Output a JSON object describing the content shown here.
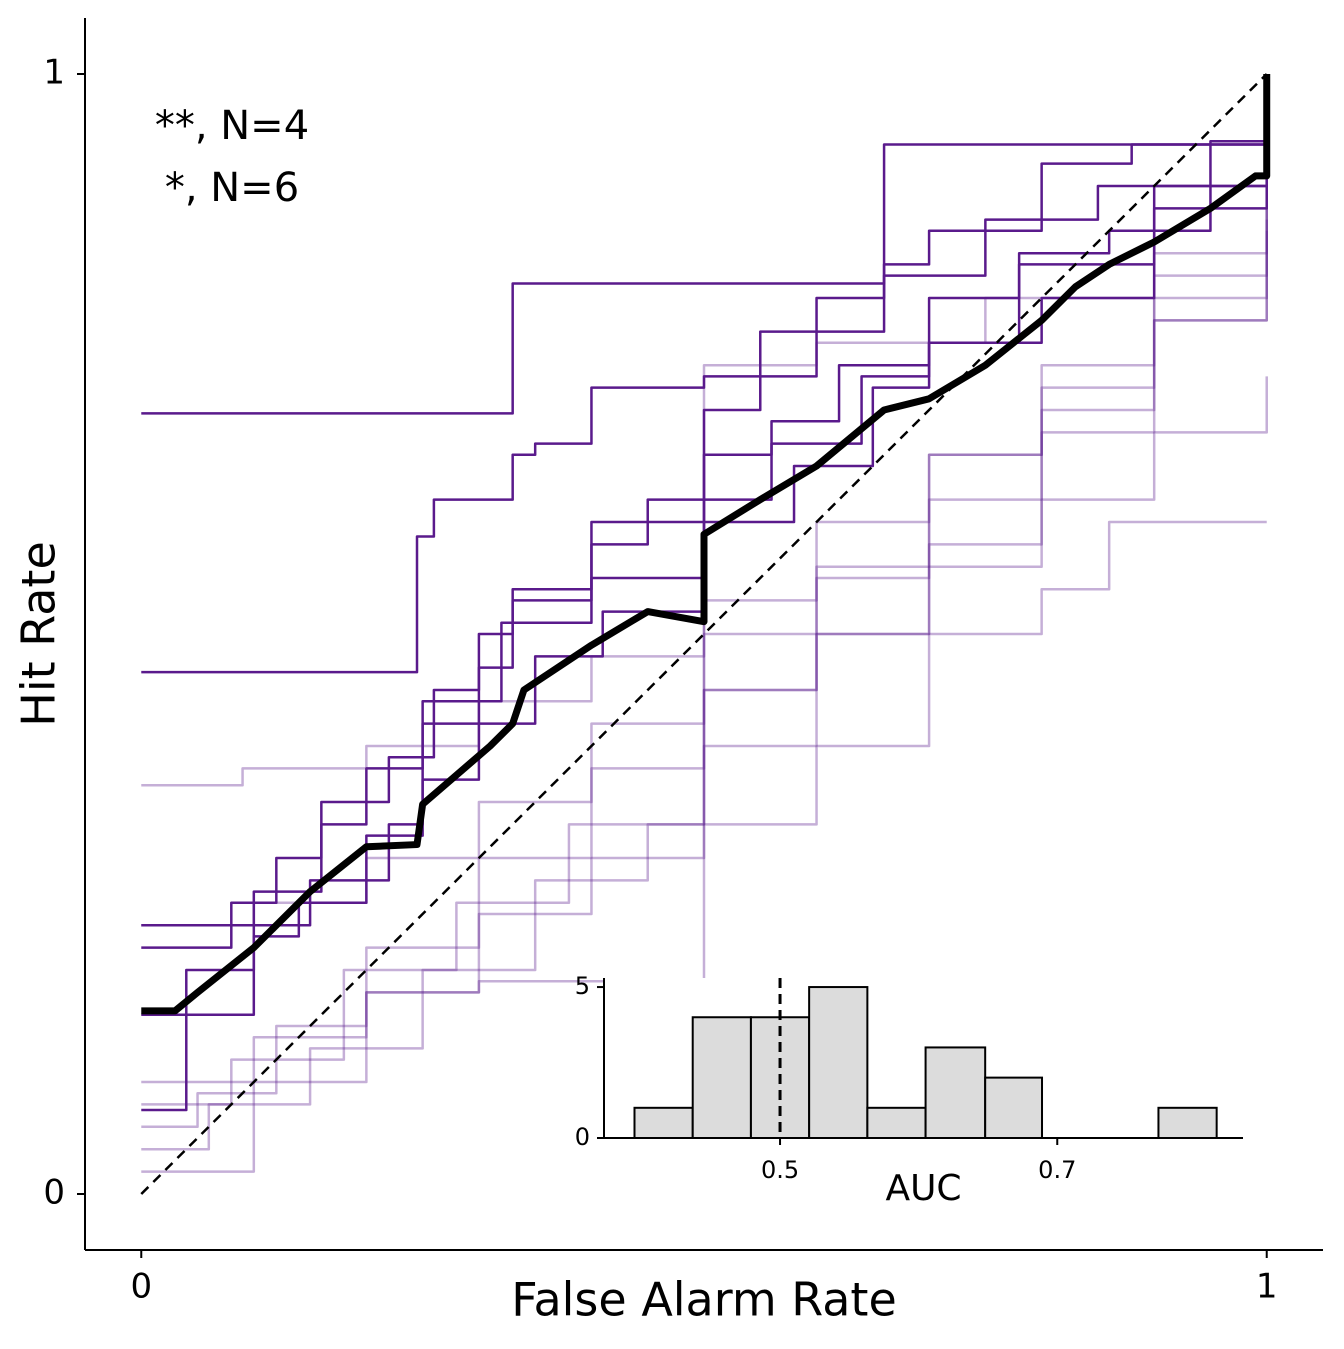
{
  "chart_data": [
    {
      "type": "line",
      "xlabel": "False Alarm Rate",
      "ylabel": "Hit Rate",
      "annotations": [
        "**, N=4",
        "*, N=6"
      ],
      "xlim": [
        -0.05,
        1.05
      ],
      "ylim": [
        -0.05,
        1.05
      ],
      "xticks": [
        0,
        1
      ],
      "yticks": [
        0,
        1
      ],
      "series": [
        {
          "color": "#5a1a8c",
          "opacity": 0.35,
          "drawstyle": "steps-post",
          "linestyle": "solid",
          "linewidth": 2.5,
          "x": [
            0,
            0.09,
            0.2,
            0.3,
            0.4,
            0.5,
            0.6,
            0.7,
            0.8,
            0.9,
            1
          ],
          "y": [
            0.365,
            0.38,
            0.4,
            0.44,
            0.48,
            0.53,
            0.6,
            0.66,
            0.72,
            0.78,
            0.88
          ]
        },
        {
          "color": "#5a1a8c",
          "opacity": 0.35,
          "drawstyle": "steps-post",
          "linestyle": "solid",
          "linewidth": 2.5,
          "x": [
            0,
            0.1,
            0.2,
            0.3,
            0.4,
            0.5,
            0.6,
            0.7,
            0.8,
            0.86,
            1
          ],
          "y": [
            0.02,
            0.1,
            0.18,
            0.25,
            0.3,
            0.33,
            0.4,
            0.5,
            0.54,
            0.6,
            0.6
          ]
        },
        {
          "color": "#5a1a8c",
          "opacity": 0.35,
          "drawstyle": "steps-post",
          "linestyle": "solid",
          "linewidth": 2.5,
          "x": [
            0,
            0.06,
            0.15,
            0.25,
            0.35,
            0.45,
            0.5,
            0.6,
            0.7,
            0.8,
            0.9,
            1
          ],
          "y": [
            0.04,
            0.08,
            0.13,
            0.2,
            0.28,
            0.33,
            0.45,
            0.5,
            0.56,
            0.62,
            0.68,
            0.73
          ]
        },
        {
          "color": "#5a1a8c",
          "opacity": 0.35,
          "drawstyle": "steps-post",
          "linestyle": "solid",
          "linewidth": 2.5,
          "x": [
            0,
            0.05,
            0.12,
            0.2,
            0.3,
            0.4,
            0.5,
            0.6,
            0.75,
            0.9,
            1
          ],
          "y": [
            0.06,
            0.09,
            0.15,
            0.18,
            0.19,
            0.19,
            0.74,
            0.76,
            0.8,
            0.84,
            0.9
          ]
        },
        {
          "color": "#5a1a8c",
          "opacity": 0.35,
          "drawstyle": "steps-post",
          "linestyle": "solid",
          "linewidth": 2.5,
          "x": [
            0,
            0.1,
            0.2,
            0.3,
            0.4,
            0.5,
            0.6,
            0.7,
            0.8,
            0.9,
            1
          ],
          "y": [
            0.1,
            0.14,
            0.22,
            0.3,
            0.38,
            0.45,
            0.55,
            0.62,
            0.7,
            0.78,
            0.86
          ]
        },
        {
          "color": "#5a1a8c",
          "opacity": 0.35,
          "drawstyle": "steps-post",
          "linestyle": "solid",
          "linewidth": 2.5,
          "x": [
            0,
            0.08,
            0.18,
            0.28,
            0.38,
            0.5,
            0.6,
            0.7,
            0.8,
            0.9,
            1
          ],
          "y": [
            0.08,
            0.12,
            0.2,
            0.26,
            0.33,
            0.4,
            0.5,
            0.58,
            0.68,
            0.8,
            0.88
          ]
        },
        {
          "color": "#5a1a8c",
          "opacity": 0.35,
          "drawstyle": "steps-post",
          "linestyle": "solid",
          "linewidth": 2.5,
          "x": [
            0,
            0.1,
            0.2,
            0.3,
            0.4,
            0.5,
            0.6,
            0.7,
            0.8,
            0.9,
            1
          ],
          "y": [
            0.24,
            0.26,
            0.3,
            0.35,
            0.42,
            0.5,
            0.56,
            0.66,
            0.74,
            0.82,
            0.87
          ]
        },
        {
          "color": "#5a1a8c",
          "opacity": 1,
          "drawstyle": "steps-post",
          "linestyle": "solid",
          "linewidth": 2.5,
          "x": [
            0,
            0.33,
            0.66,
            1
          ],
          "y": [
            0.697,
            0.813,
            0.937,
            1
          ]
        },
        {
          "color": "#5a1a8c",
          "opacity": 1,
          "drawstyle": "steps-post",
          "linestyle": "solid",
          "linewidth": 2.5,
          "x": [
            0,
            0.245,
            0.26,
            0.33,
            0.35,
            0.4,
            0.5,
            0.55,
            0.6,
            0.66,
            0.7,
            0.8,
            0.88,
            1
          ],
          "y": [
            0.466,
            0.587,
            0.62,
            0.66,
            0.67,
            0.72,
            0.73,
            0.77,
            0.8,
            0.83,
            0.86,
            0.92,
            0.937,
            1
          ]
        },
        {
          "color": "#5a1a8c",
          "opacity": 1,
          "drawstyle": "steps-post",
          "linestyle": "solid",
          "linewidth": 2.5,
          "x": [
            0,
            0.04,
            0.1,
            0.14,
            0.2,
            0.25,
            0.3,
            0.33,
            0.4,
            0.5,
            0.55,
            0.6,
            0.66,
            0.75,
            0.85,
            0.95,
            1
          ],
          "y": [
            0.075,
            0.2,
            0.23,
            0.26,
            0.32,
            0.42,
            0.47,
            0.53,
            0.6,
            0.7,
            0.73,
            0.77,
            0.82,
            0.87,
            0.9,
            0.94,
            1
          ]
        },
        {
          "color": "#5a1a8c",
          "opacity": 1,
          "drawstyle": "steps-post",
          "linestyle": "solid",
          "linewidth": 2.5,
          "x": [
            0,
            0.04,
            0.08,
            0.12,
            0.16,
            0.22,
            0.26,
            0.3,
            0.33,
            0.4,
            0.45,
            0.5,
            0.56,
            0.62,
            0.7,
            0.78,
            0.86,
            0.95,
            1
          ],
          "y": [
            0.22,
            0.22,
            0.26,
            0.3,
            0.35,
            0.39,
            0.45,
            0.5,
            0.54,
            0.58,
            0.62,
            0.66,
            0.69,
            0.74,
            0.8,
            0.84,
            0.86,
            0.9,
            0.96
          ]
        },
        {
          "color": "#5a1a8c",
          "opacity": 1,
          "drawstyle": "steps-post",
          "linestyle": "solid",
          "linewidth": 2.5,
          "x": [
            0,
            0.05,
            0.1,
            0.15,
            0.22,
            0.25,
            0.3,
            0.35,
            0.41,
            0.5,
            0.58,
            0.65,
            0.7,
            0.78,
            0.9,
            1
          ],
          "y": [
            0.16,
            0.16,
            0.24,
            0.28,
            0.33,
            0.37,
            0.42,
            0.48,
            0.52,
            0.6,
            0.65,
            0.72,
            0.76,
            0.83,
            0.88,
            0.92
          ]
        },
        {
          "color": "#5a1a8c",
          "opacity": 1,
          "drawstyle": "steps-post",
          "linestyle": "solid",
          "linewidth": 2.5,
          "x": [
            0,
            0.04,
            0.1,
            0.16,
            0.2,
            0.25,
            0.32,
            0.4,
            0.5,
            0.56,
            0.64,
            0.7,
            0.8,
            0.9,
            1
          ],
          "y": [
            0.24,
            0.24,
            0.27,
            0.33,
            0.38,
            0.44,
            0.51,
            0.55,
            0.62,
            0.67,
            0.73,
            0.76,
            0.8,
            0.9,
            0.96
          ]
        },
        {
          "color": "#000000",
          "opacity": 1,
          "drawstyle": "linear",
          "linestyle": "dashed",
          "linewidth": 2.5,
          "x": [
            0,
            1
          ],
          "y": [
            0,
            1
          ]
        },
        {
          "color": "#000000",
          "opacity": 1,
          "drawstyle": "linear",
          "linestyle": "solid",
          "linewidth": 7,
          "x": [
            0,
            0.03,
            0.05,
            0.1,
            0.15,
            0.2,
            0.245,
            0.25,
            0.31,
            0.33,
            0.34,
            0.4,
            0.45,
            0.5,
            0.5,
            0.55,
            0.6,
            0.66,
            0.7,
            0.75,
            0.8,
            0.83,
            0.86,
            0.9,
            0.95,
            0.99,
            1,
            1
          ],
          "y": [
            0.1635,
            0.1635,
            0.18,
            0.22,
            0.27,
            0.31,
            0.312,
            0.348,
            0.4,
            0.42,
            0.45,
            0.49,
            0.52,
            0.511,
            0.589,
            0.62,
            0.65,
            0.7,
            0.71,
            0.74,
            0.78,
            0.81,
            0.83,
            0.85,
            0.88,
            0.909,
            0.909,
            1
          ]
        }
      ]
    },
    {
      "type": "histogram",
      "xlabel": "AUC",
      "bins": [
        0.395,
        0.437,
        0.479,
        0.521,
        0.563,
        0.605,
        0.648,
        0.689,
        0.731,
        0.773,
        0.815
      ],
      "counts": [
        1,
        4,
        4,
        5,
        1,
        3,
        2,
        0,
        0,
        1
      ],
      "color": "#dcdcdc",
      "edgecolor": "#000000",
      "reference_line": 0.5,
      "xlim": [
        0.373,
        0.834
      ],
      "ylim": [
        0,
        5.3
      ],
      "xticks": [
        0.5,
        0.7
      ],
      "yticks": [
        0,
        5
      ]
    }
  ]
}
